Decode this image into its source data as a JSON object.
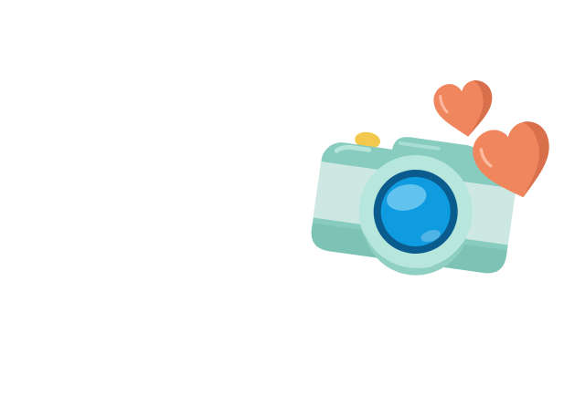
{
  "scene": {
    "background": "#ffffff",
    "illustration": "camera-with-hearts",
    "colors": {
      "camera_body": "#88cbbf",
      "camera_body_shadow": "#6fb8aa",
      "camera_band": "#cde8e2",
      "camera_top_highlight": "#a8ddd3",
      "lens_ring": "#b7e6dd",
      "lens_outer": "#0b5c8e",
      "lens_inner": "#0e9be0",
      "lens_highlight": "#63c3ef",
      "shutter_button": "#f2c94c",
      "heart": "#f0865e",
      "heart_shadow": "#d8704c",
      "heart_highlight": "#fbb9a0"
    }
  }
}
